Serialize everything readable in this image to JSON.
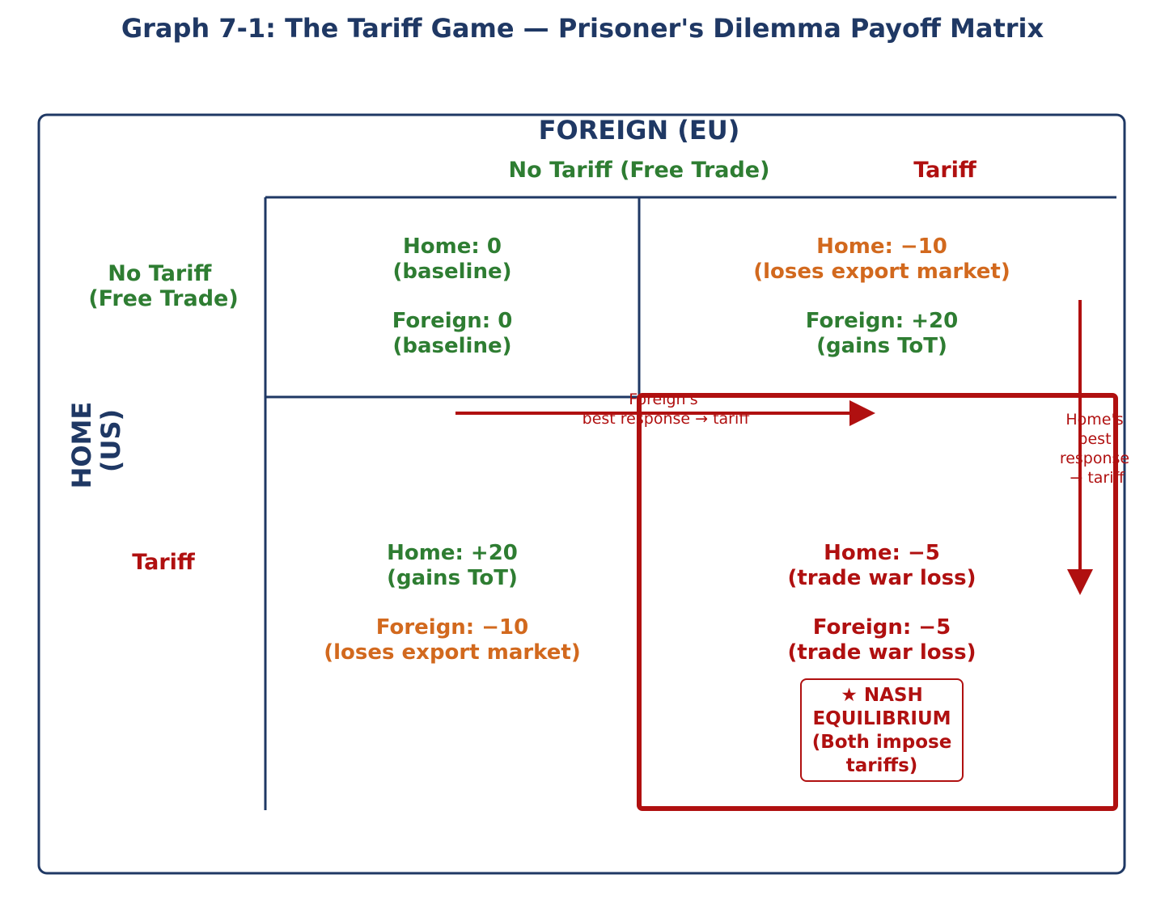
{
  "title": "Graph 7-1: The Tariff Game — Prisoner's Dilemma Payoff Matrix",
  "colors": {
    "navy": "#1f3864",
    "green": "#2e7d32",
    "orange": "#d2691e",
    "red": "#b01010"
  },
  "players": {
    "foreign": {
      "label": "FOREIGN (EU)",
      "strategies": [
        "No Tariff (Free Trade)",
        "Tariff"
      ]
    },
    "home": {
      "label_line1": "HOME",
      "label_line2": "(US)",
      "strategies": {
        "no_tariff_line1": "No Tariff",
        "no_tariff_line2": "(Free Trade)",
        "tariff": "Tariff"
      }
    }
  },
  "cells": {
    "nt_nt": {
      "home_value": "Home: 0",
      "home_note": "(baseline)",
      "foreign_value": "Foreign: 0",
      "foreign_note": "(baseline)"
    },
    "nt_t": {
      "home_value": "Home: −10",
      "home_note": "(loses export market)",
      "foreign_value": "Foreign: +20",
      "foreign_note": "(gains ToT)"
    },
    "t_nt": {
      "home_value": "Home: +20",
      "home_note": "(gains ToT)",
      "foreign_value": "Foreign: −10",
      "foreign_note": "(loses export market)"
    },
    "t_t": {
      "home_value": "Home: −5",
      "home_note": "(trade war loss)",
      "foreign_value": "Foreign: −5",
      "foreign_note": "(trade war loss)"
    }
  },
  "nash": {
    "line1": "★ NASH",
    "line2": "EQUILIBRIUM",
    "line3": "(Both impose",
    "line4": "tariffs)"
  },
  "arrows": {
    "foreign_best_response": {
      "line1": "Foreign's",
      "line2": "best response → tariff"
    },
    "home_best_response": {
      "line1": "Home's",
      "line2": "best",
      "line3": "response",
      "line4": "→ tariff"
    }
  }
}
